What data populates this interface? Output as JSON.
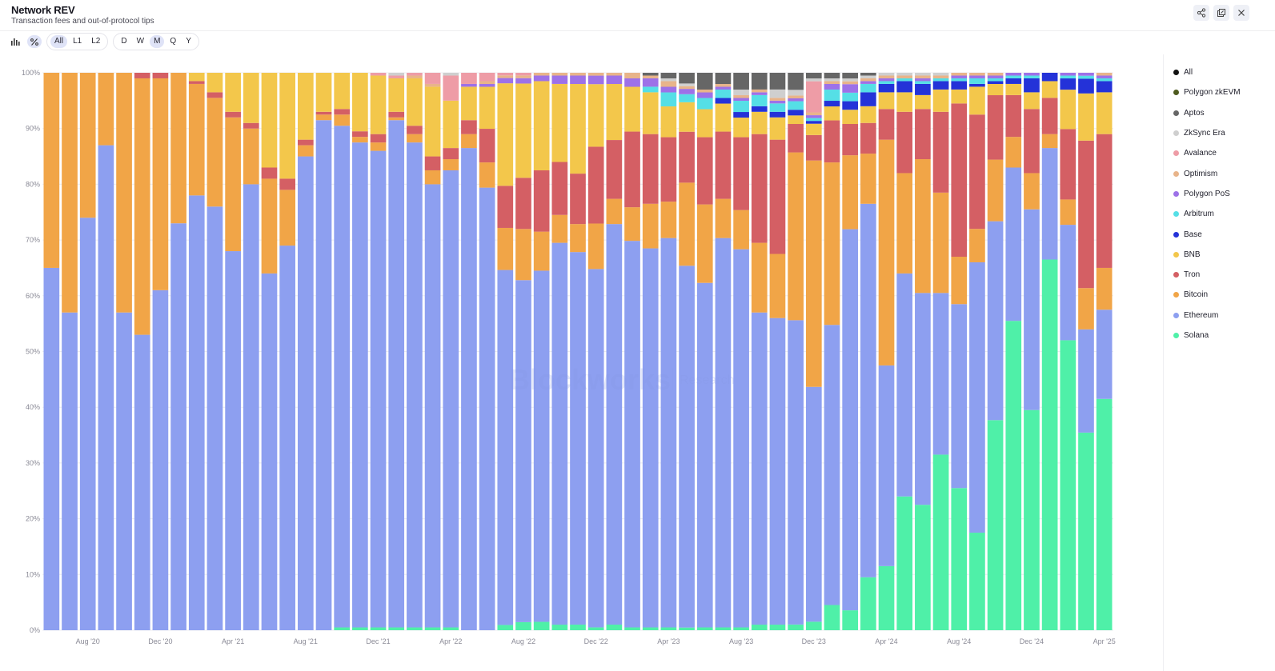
{
  "header": {
    "title": "Network REV",
    "subtitle": "Transaction fees and out-of-protocol tips"
  },
  "toolbar": {
    "chart_icon": "bar-chart-icon",
    "percent_icon": "percent-icon",
    "layer_filters": [
      "All",
      "L1",
      "L2"
    ],
    "active_layer": "All",
    "intervals": [
      "D",
      "W",
      "M",
      "Q",
      "Y"
    ],
    "active_interval": "M"
  },
  "actions": {
    "share_icon": "share-icon",
    "export_icon": "export-icon",
    "close_icon": "close-icon"
  },
  "watermark": {
    "brand": "Blockworks",
    "sub": "Research"
  },
  "legend": [
    {
      "label": "All",
      "color": "#111111"
    },
    {
      "label": "Polygon zkEVM",
      "color": "#4d5a1e"
    },
    {
      "label": "Aptos",
      "color": "#666666"
    },
    {
      "label": "ZkSync Era",
      "color": "#cfcfcf"
    },
    {
      "label": "Avalance",
      "color": "#ee9ca6"
    },
    {
      "label": "Optimism",
      "color": "#e8b48a"
    },
    {
      "label": "Polygon PoS",
      "color": "#9d71e8"
    },
    {
      "label": "Arbitrum",
      "color": "#55dfe6"
    },
    {
      "label": "Base",
      "color": "#2432d8"
    },
    {
      "label": "BNB",
      "color": "#f3c74b"
    },
    {
      "label": "Tron",
      "color": "#d45f64"
    },
    {
      "label": "Bitcoin",
      "color": "#f1a547"
    },
    {
      "label": "Ethereum",
      "color": "#8d9ff0"
    },
    {
      "label": "Solana",
      "color": "#4ff0a8"
    }
  ],
  "chart_data": {
    "type": "bar",
    "stacked": true,
    "normalized": true,
    "x_ticks": [
      "Aug '20",
      "Dec '20",
      "Apr '21",
      "Aug '21",
      "Dec '21",
      "Apr '22",
      "Aug '22",
      "Dec '22",
      "Apr '23",
      "Aug '23",
      "Dec '23",
      "Apr '24",
      "Aug '24",
      "Dec '24",
      "Apr '25"
    ],
    "y_ticks": [
      "0%",
      "10%",
      "20%",
      "30%",
      "40%",
      "50%",
      "60%",
      "70%",
      "80%",
      "90%",
      "100%"
    ],
    "ylim": [
      0,
      100
    ],
    "grid": true,
    "legend_position": "right",
    "stack_order": [
      "Solana",
      "Ethereum",
      "Bitcoin",
      "Tron",
      "BNB",
      "Base",
      "Arbitrum",
      "Polygon PoS",
      "Optimism",
      "Avalance",
      "ZkSync Era",
      "Aptos",
      "Polygon zkEVM"
    ],
    "series_values": [
      [
        0,
        65,
        35,
        0,
        0,
        0,
        0,
        0,
        0,
        0,
        0,
        0,
        0
      ],
      [
        0,
        57,
        43,
        0,
        0,
        0,
        0,
        0,
        0,
        0,
        0,
        0,
        0
      ],
      [
        0,
        74,
        26,
        0,
        0,
        0,
        0,
        0,
        0,
        0,
        0,
        0,
        0
      ],
      [
        0,
        87,
        13,
        0,
        0,
        0,
        0,
        0,
        0,
        0,
        0,
        0,
        0
      ],
      [
        0,
        57,
        43,
        0,
        0,
        0,
        0,
        0,
        0,
        0,
        0,
        0,
        0
      ],
      [
        0,
        53,
        46,
        1,
        0,
        0,
        0,
        0,
        0,
        0,
        0,
        0,
        0
      ],
      [
        0,
        61,
        38,
        1,
        0,
        0,
        0,
        0,
        0,
        0,
        0,
        0,
        0
      ],
      [
        0,
        73,
        27,
        0,
        0,
        0,
        0,
        0,
        0,
        0,
        0,
        0,
        0
      ],
      [
        0,
        78,
        20,
        0.5,
        1.5,
        0,
        0,
        0,
        0,
        0,
        0,
        0,
        0
      ],
      [
        0,
        76,
        19.5,
        1,
        3.5,
        0,
        0,
        0,
        0,
        0,
        0,
        0,
        0
      ],
      [
        0,
        68,
        24,
        1,
        7,
        0,
        0,
        0,
        0,
        0,
        0,
        0,
        0
      ],
      [
        0,
        80,
        10,
        1,
        9,
        0,
        0,
        0,
        0,
        0,
        0,
        0,
        0
      ],
      [
        0,
        64,
        17,
        2,
        17,
        0,
        0,
        0,
        0,
        0,
        0,
        0,
        0
      ],
      [
        0,
        69,
        10,
        2,
        19,
        0,
        0,
        0,
        0,
        0,
        0,
        0,
        0
      ],
      [
        0,
        85,
        2,
        1,
        12,
        0,
        0,
        0,
        0,
        0,
        0,
        0,
        0
      ],
      [
        0,
        91.5,
        1,
        0.5,
        7,
        0,
        0,
        0,
        0,
        0,
        0,
        0,
        0
      ],
      [
        0.5,
        90,
        2,
        1,
        6.5,
        0,
        0,
        0,
        0,
        0,
        0,
        0,
        0
      ],
      [
        0.5,
        87,
        1,
        1,
        10.5,
        0,
        0,
        0,
        0,
        0,
        0,
        0,
        0
      ],
      [
        0.5,
        85.5,
        1.5,
        1.5,
        10.5,
        0,
        0,
        0,
        0,
        0.5,
        0,
        0,
        0
      ],
      [
        0.5,
        91,
        0.5,
        1,
        6,
        0,
        0,
        0,
        0,
        0.5,
        0.5,
        0,
        0
      ],
      [
        0.5,
        87,
        1.5,
        1.5,
        8.5,
        0,
        0,
        0,
        0.5,
        0.5,
        0,
        0,
        0
      ],
      [
        0.5,
        79.5,
        2.5,
        2.5,
        12.5,
        0,
        0,
        0,
        0.5,
        2,
        0,
        0,
        0
      ],
      [
        0.5,
        82,
        2,
        2,
        8.5,
        0,
        0,
        0,
        0,
        4.5,
        0.5,
        0,
        0
      ],
      [
        0,
        86.5,
        2.5,
        2.5,
        6,
        0,
        0,
        0.5,
        0,
        2,
        0,
        0,
        0
      ],
      [
        0,
        79,
        4.5,
        6,
        7.5,
        0,
        0,
        0.5,
        0.5,
        1.5,
        0,
        0,
        0
      ],
      [
        1,
        67.5,
        8,
        8,
        19.5,
        0,
        0,
        1,
        0.5,
        0.5,
        0,
        0,
        0
      ],
      [
        1.5,
        63.5,
        9.5,
        9.5,
        17.5,
        0,
        0,
        1,
        0.5,
        0.5,
        0,
        0,
        0
      ],
      [
        1.5,
        63,
        7,
        11,
        16,
        0,
        0,
        1,
        0.5,
        0,
        0,
        0,
        0
      ],
      [
        1,
        68.5,
        5,
        9.5,
        14,
        0,
        0,
        1.5,
        0.5,
        0,
        0,
        0,
        0
      ],
      [
        1,
        66.5,
        5,
        9,
        16,
        0,
        0,
        1.5,
        0.5,
        0,
        0,
        0,
        0
      ],
      [
        0.5,
        63,
        8,
        13.5,
        11,
        0,
        0,
        1.5,
        0.5,
        0,
        0,
        0,
        0
      ],
      [
        1,
        71.5,
        4.5,
        10.5,
        10,
        0,
        0,
        1.5,
        0.5,
        0,
        0,
        0,
        0
      ],
      [
        0.5,
        69,
        6,
        13.5,
        8,
        0,
        0,
        1.5,
        1,
        0,
        0,
        0,
        0
      ],
      [
        0.5,
        68,
        8,
        12.5,
        7.5,
        0,
        1,
        1.5,
        0.5,
        0,
        0,
        0.5,
        0
      ],
      [
        0.5,
        69.5,
        6.5,
        11.5,
        5.5,
        0,
        2.5,
        1,
        1,
        0,
        0.5,
        1,
        0
      ],
      [
        0.5,
        67.5,
        15.5,
        9.5,
        5.5,
        0,
        1.5,
        1,
        0.5,
        0,
        0.5,
        2,
        0
      ],
      [
        0.5,
        61.5,
        14,
        12,
        5,
        0,
        2,
        1,
        0.5,
        0,
        0,
        3,
        0
      ],
      [
        0.5,
        69.5,
        7,
        12,
        5,
        1,
        1.5,
        0.5,
        0.5,
        0,
        0,
        2,
        0
      ],
      [
        0.5,
        67.5,
        7,
        13,
        3.5,
        1,
        2,
        0.5,
        0.5,
        0,
        1,
        3,
        0
      ],
      [
        1,
        56,
        12.5,
        19.5,
        4,
        1,
        2,
        0.5,
        0.5,
        0,
        0,
        3,
        0
      ],
      [
        1,
        55,
        11.5,
        20.5,
        4,
        1,
        1.5,
        0.5,
        0.5,
        0,
        1.5,
        3,
        0
      ],
      [
        1,
        53.5,
        29.5,
        5,
        1.5,
        1,
        1.5,
        0.5,
        0.5,
        0,
        1,
        3,
        0
      ],
      [
        1.5,
        41.5,
        40,
        4.5,
        2,
        0.5,
        0.5,
        0.5,
        0.5,
        5.5,
        0.5,
        1,
        0
      ],
      [
        4.5,
        50,
        29,
        7.5,
        2.5,
        1,
        2,
        1,
        0.5,
        0,
        0.5,
        1,
        0
      ],
      [
        3.5,
        67,
        13,
        5.5,
        2.5,
        1.5,
        1.5,
        1.5,
        0.5,
        0,
        0.5,
        1,
        0
      ],
      [
        9.5,
        67,
        9,
        5.5,
        3,
        2.5,
        1.5,
        0.5,
        0.5,
        0,
        0.5,
        0.5,
        0
      ],
      [
        11.5,
        36,
        40.5,
        5.5,
        3,
        1.5,
        0.5,
        0.5,
        0.5,
        0,
        0.5,
        0,
        0
      ],
      [
        24,
        40,
        18,
        11,
        3.5,
        2,
        0.5,
        0,
        0.5,
        0,
        0.5,
        0,
        0
      ],
      [
        22.5,
        38,
        24,
        9,
        2.5,
        2,
        0.5,
        0.5,
        0.5,
        0,
        0.5,
        0,
        0
      ],
      [
        31.5,
        29,
        18,
        14.5,
        4,
        1.5,
        0.5,
        0,
        0.5,
        0,
        0.5,
        0,
        0
      ],
      [
        25.5,
        33,
        8.5,
        27.5,
        2.5,
        1.5,
        0.5,
        0.5,
        0.5,
        0,
        0,
        0,
        0
      ],
      [
        17.5,
        48.5,
        6,
        20.5,
        5,
        0.5,
        1,
        0.5,
        0.5,
        0,
        0,
        0,
        0
      ],
      [
        37.5,
        35.5,
        11,
        11.5,
        2,
        0.5,
        0.5,
        0.5,
        0.5,
        0,
        0,
        0,
        0
      ],
      [
        55.5,
        27.5,
        5.5,
        7.5,
        2,
        1,
        0.5,
        0.5,
        0,
        0,
        0,
        0,
        0
      ],
      [
        39.5,
        36,
        6.5,
        11.5,
        3,
        2.5,
        0.5,
        0.5,
        0,
        0,
        0,
        0,
        0
      ],
      [
        66.5,
        20,
        2.5,
        6.5,
        3,
        1.5,
        0,
        0,
        0,
        0,
        0,
        0,
        0
      ],
      [
        51.5,
        20.5,
        4.5,
        12.5,
        7,
        2,
        0.5,
        0.5,
        0,
        0,
        0,
        0,
        0
      ],
      [
        33.5,
        17.5,
        7,
        25,
        8,
        2.5,
        0.5,
        0.5,
        0,
        0,
        0,
        0,
        0
      ],
      [
        41.5,
        16,
        7.5,
        24,
        7.5,
        2,
        0.5,
        0.5,
        0.5,
        0,
        0,
        0,
        0
      ]
    ]
  }
}
